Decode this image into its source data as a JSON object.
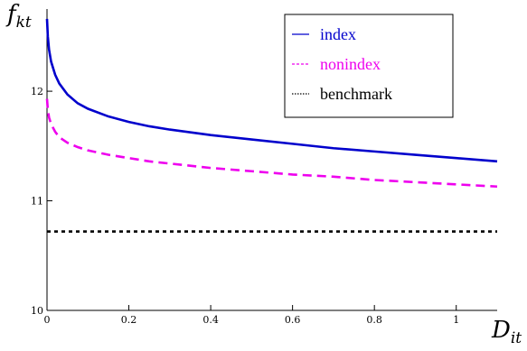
{
  "chart_data": {
    "type": "line",
    "xlabel": {
      "main": "D",
      "sub": "it"
    },
    "ylabel": {
      "main": "f",
      "sub": "kt"
    },
    "xlim": [
      0,
      1.1
    ],
    "ylim": [
      10,
      12.75
    ],
    "xticks": [
      0,
      0.2,
      0.4,
      0.6,
      0.8,
      1
    ],
    "xtick_labels": [
      "0",
      "0.2",
      "0.4",
      "0.6",
      "0.8",
      "1"
    ],
    "yticks": [
      10,
      11,
      12
    ],
    "ytick_labels": [
      "10",
      "11",
      "12"
    ],
    "grid": false,
    "legend_position": "top-right",
    "series": [
      {
        "name": "index",
        "color": "#0000cc",
        "dash": "solid",
        "x": [
          0,
          0.002,
          0.005,
          0.01,
          0.02,
          0.03,
          0.05,
          0.075,
          0.1,
          0.15,
          0.2,
          0.25,
          0.3,
          0.4,
          0.5,
          0.6,
          0.7,
          0.8,
          0.9,
          1.0,
          1.1
        ],
        "y": [
          12.66,
          12.5,
          12.38,
          12.27,
          12.15,
          12.07,
          11.97,
          11.89,
          11.84,
          11.77,
          11.72,
          11.68,
          11.65,
          11.6,
          11.56,
          11.52,
          11.48,
          11.45,
          11.42,
          11.39,
          11.36
        ]
      },
      {
        "name": "nonindex",
        "color": "#ee00ee",
        "dash": "dashed",
        "x": [
          0,
          0.002,
          0.005,
          0.01,
          0.02,
          0.03,
          0.05,
          0.075,
          0.1,
          0.15,
          0.2,
          0.25,
          0.3,
          0.4,
          0.5,
          0.6,
          0.7,
          0.8,
          0.9,
          1.0,
          1.1
        ],
        "y": [
          11.93,
          11.83,
          11.76,
          11.7,
          11.63,
          11.58,
          11.53,
          11.49,
          11.46,
          11.42,
          11.39,
          11.36,
          11.34,
          11.3,
          11.27,
          11.24,
          11.22,
          11.19,
          11.17,
          11.15,
          11.13
        ]
      },
      {
        "name": "benchmark",
        "color": "#000000",
        "dash": "dotted",
        "x": [
          0,
          1.1
        ],
        "y": [
          10.72,
          10.72
        ]
      }
    ]
  }
}
